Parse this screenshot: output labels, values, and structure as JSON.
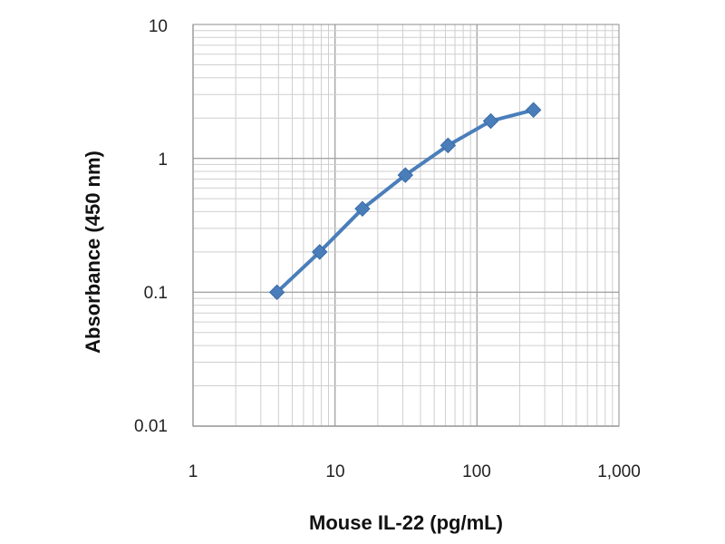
{
  "chart_data": {
    "type": "line",
    "xscale": "log",
    "yscale": "log",
    "xlabel": "Mouse IL-22 (pg/mL)",
    "ylabel": "Absorbance (450 nm)",
    "xlim": [
      1,
      1000
    ],
    "ylim": [
      0.01,
      10
    ],
    "x_ticks": [
      1,
      10,
      100,
      1000
    ],
    "x_tick_labels": [
      "1",
      "10",
      "100",
      "1,000"
    ],
    "y_ticks": [
      0.01,
      0.1,
      1,
      10
    ],
    "y_tick_labels": [
      "0.01",
      "0.1",
      "1",
      "10"
    ],
    "grid": true,
    "minor_grid": true,
    "series": [
      {
        "x": [
          3.9,
          7.8,
          15.6,
          31.3,
          62.5,
          125,
          250
        ],
        "y": [
          0.1,
          0.2,
          0.42,
          0.75,
          1.25,
          1.9,
          2.3
        ]
      }
    ],
    "colors": {
      "line": "#4a7ebb",
      "marker": "#4a7ebb",
      "grid_major": "#a6a6a6",
      "grid_minor": "#cfcfcf"
    }
  }
}
